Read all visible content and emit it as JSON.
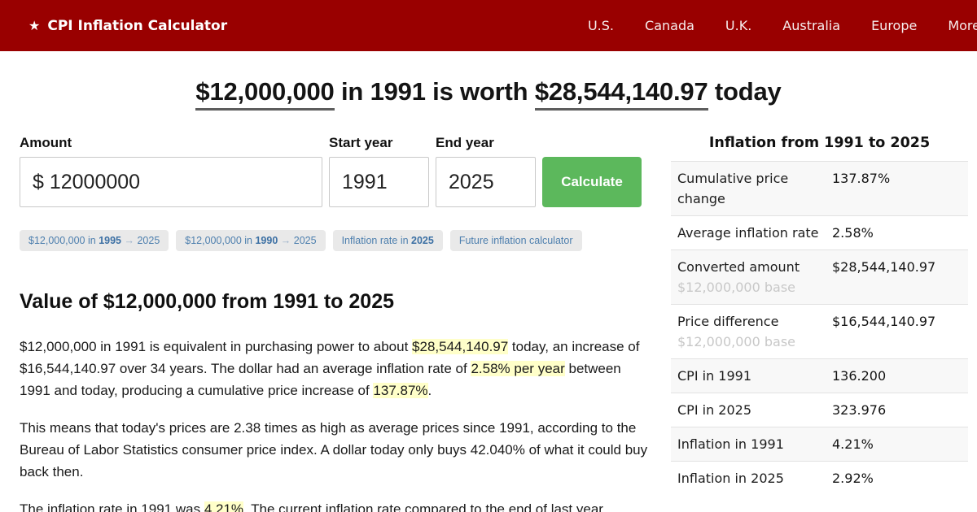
{
  "header": {
    "star_icon": "★",
    "brand": "CPI Inflation Calculator",
    "nav": [
      "U.S.",
      "Canada",
      "U.K.",
      "Australia",
      "Europe",
      "More"
    ]
  },
  "title": {
    "segments": [
      {
        "t": "$12,000,000",
        "c": "ul"
      },
      {
        "t": " in 1991 is worth "
      },
      {
        "t": "$28,544,140.97",
        "c": "ul"
      },
      {
        "t": " today"
      }
    ]
  },
  "form": {
    "amount_label": "Amount",
    "amount_value": "$ 12000000",
    "start_year_label": "Start year",
    "start_year_value": "1991",
    "end_year_label": "End year",
    "end_year_value": "2025",
    "calculate_label": "Calculate"
  },
  "chips": [
    {
      "segments": [
        {
          "t": "$12,000,000 in "
        },
        {
          "t": "1995",
          "c": "b"
        },
        {
          "t": " → ",
          "c": "arrow"
        },
        {
          "t": "2025"
        }
      ]
    },
    {
      "segments": [
        {
          "t": "$12,000,000 in "
        },
        {
          "t": "1990",
          "c": "b"
        },
        {
          "t": " → ",
          "c": "arrow"
        },
        {
          "t": "2025"
        }
      ]
    },
    {
      "segments": [
        {
          "t": "Inflation rate in "
        },
        {
          "t": "2025",
          "c": "b"
        }
      ]
    },
    {
      "segments": [
        {
          "t": "Future inflation calculator"
        }
      ]
    }
  ],
  "article": {
    "heading": "Value of $12,000,000 from 1991 to 2025",
    "paragraphs": [
      {
        "segments": [
          {
            "t": "$12,000,000 in 1991 is equivalent in purchasing power to about "
          },
          {
            "t": "$28,544,140.97",
            "c": "hl"
          },
          {
            "t": " today, an increase of $16,544,140.97 over 34 years. The dollar had an average inflation rate of "
          },
          {
            "t": "2.58% per year",
            "c": "hl"
          },
          {
            "t": " between 1991 and today, producing a cumulative price increase of "
          },
          {
            "t": "137.87%",
            "c": "hl"
          },
          {
            "t": "."
          }
        ]
      },
      {
        "segments": [
          {
            "t": "This means that today's prices are 2.38 times as high as average prices since 1991, according to the Bureau of Labor Statistics consumer price index. A dollar today only buys 42.040% of what it could buy back then."
          }
        ]
      },
      {
        "segments": [
          {
            "t": "The inflation rate in 1991 was "
          },
          {
            "t": "4.21%",
            "c": "hl"
          },
          {
            "t": ". The current inflation rate compared to the end of last year"
          }
        ]
      }
    ]
  },
  "sidebar": {
    "title": "Inflation from 1991 to 2025",
    "rows": [
      {
        "label": "Cumulative price change",
        "value": "137.87%"
      },
      {
        "label": "Average inflation rate",
        "value": "2.58%"
      },
      {
        "label": "Converted amount",
        "sublabel": "$12,000,000 base",
        "value": "$28,544,140.97"
      },
      {
        "label": "Price difference",
        "sublabel": "$12,000,000 base",
        "value": "$16,544,140.97"
      },
      {
        "label": "CPI in 1991",
        "value": "136.200"
      },
      {
        "label": "CPI in 2025",
        "value": "323.976"
      },
      {
        "label": "Inflation in 1991",
        "value": "4.21%"
      },
      {
        "label": "Inflation in 2025",
        "value": "2.92%"
      }
    ]
  },
  "colors": {
    "header_red": "#990000",
    "button_green": "#5cb85c",
    "highlight_yellow": "#ffffc9",
    "chip_blue": "#4d7fae"
  }
}
